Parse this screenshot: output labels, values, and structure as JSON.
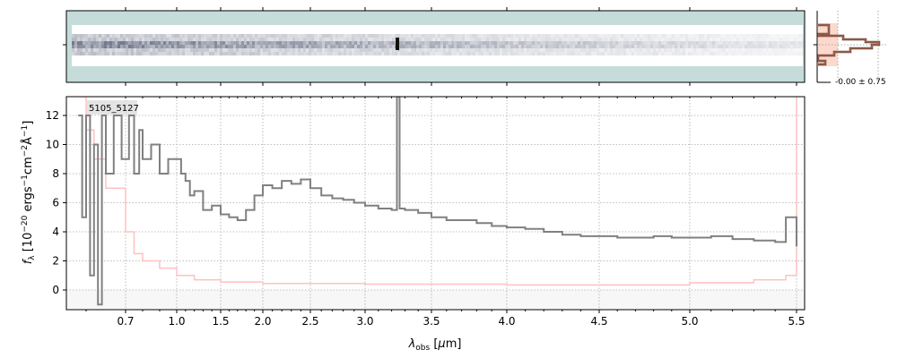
{
  "chart_data": [
    {
      "type": "heatmap",
      "description_label": "",
      "ylim": [
        -1,
        1
      ],
      "colormap": "bone_r"
    },
    {
      "type": "line",
      "label": "5105_5127",
      "xlabel": "λobs [μm]",
      "ylabel": "fλ [10^-20 ergs^-1 cm^-2 Å^-1]",
      "xticks": [
        0.7,
        1.0,
        1.5,
        2.0,
        2.5,
        3.0,
        3.5,
        4.0,
        4.5,
        5.0,
        5.5
      ],
      "xtick_labels": [
        "0.7",
        "1.0",
        "1.5",
        "2.0",
        "2.5",
        "3.0",
        "3.5",
        "4.0",
        "4.5",
        "5.0",
        "5.5"
      ],
      "yticks": [
        0,
        2,
        4,
        6,
        8,
        10,
        12
      ],
      "ylim": [
        -1.35,
        13.3
      ],
      "xlim": [
        0.55,
        5.52
      ],
      "grid": true,
      "series": [
        {
          "role": "flux",
          "color": "#808080",
          "x": [
            0.58,
            0.59,
            0.6,
            0.61,
            0.62,
            0.63,
            0.64,
            0.65,
            0.67,
            0.69,
            0.72,
            0.75,
            0.78,
            0.8,
            0.85,
            0.9,
            0.95,
            1.0,
            1.05,
            1.1,
            1.15,
            1.2,
            1.3,
            1.4,
            1.5,
            1.6,
            1.7,
            1.8,
            1.9,
            2.0,
            2.1,
            2.2,
            2.3,
            2.4,
            2.5,
            2.6,
            2.7,
            2.8,
            2.9,
            3.0,
            3.1,
            3.2,
            3.24,
            3.26,
            3.3,
            3.4,
            3.5,
            3.6,
            3.7,
            3.8,
            3.9,
            4.0,
            4.1,
            4.2,
            4.3,
            4.4,
            4.5,
            4.6,
            4.7,
            4.8,
            4.9,
            5.0,
            5.1,
            5.2,
            5.3,
            5.4,
            5.45,
            5.5
          ],
          "y": [
            12,
            5,
            12,
            1,
            10,
            -1,
            12,
            8,
            12,
            9,
            12,
            8,
            11,
            9,
            10,
            8,
            9,
            9,
            8,
            7.5,
            6.5,
            6.8,
            5.5,
            5.8,
            5.2,
            5.0,
            4.8,
            5.5,
            6.5,
            7.2,
            7.0,
            7.5,
            7.3,
            7.6,
            7.0,
            6.5,
            6.3,
            6.2,
            6.0,
            5.8,
            5.6,
            5.5,
            13.3,
            5.6,
            5.5,
            5.3,
            5.0,
            4.8,
            4.8,
            4.6,
            4.4,
            4.3,
            4.2,
            4.0,
            3.8,
            3.7,
            3.7,
            3.6,
            3.6,
            3.7,
            3.6,
            3.6,
            3.7,
            3.5,
            3.4,
            3.3,
            5.0,
            3.0
          ]
        },
        {
          "role": "error",
          "color": "#ffc0c0",
          "x": [
            0.58,
            0.6,
            0.62,
            0.65,
            0.7,
            0.75,
            0.8,
            0.9,
            1.0,
            1.2,
            1.5,
            2.0,
            3.0,
            4.0,
            5.0,
            5.3,
            5.45,
            5.5
          ],
          "y": [
            13.3,
            11,
            9,
            7,
            4,
            2.5,
            2,
            1.5,
            1.0,
            0.7,
            0.55,
            0.45,
            0.4,
            0.35,
            0.5,
            0.7,
            1.0,
            13.3
          ]
        }
      ]
    },
    {
      "type": "bar",
      "orientation": "horizontal",
      "label": "-0.00 ± 0.75"
    }
  ]
}
